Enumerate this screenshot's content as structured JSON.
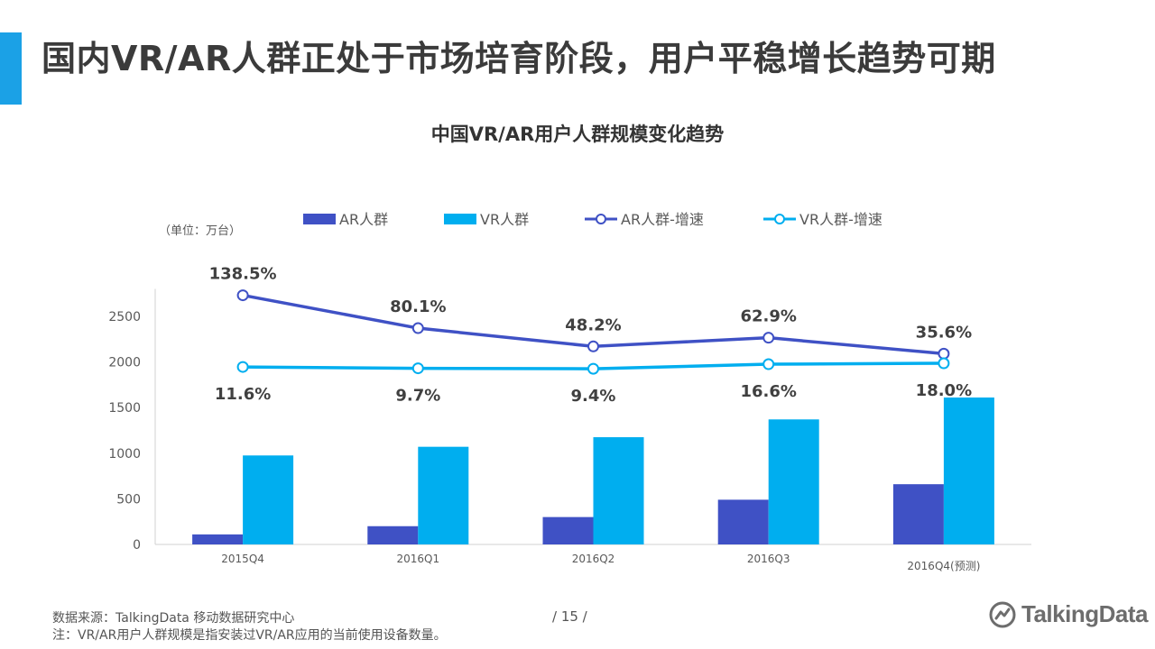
{
  "slide": {
    "title": "国内VR/AR人群正处于市场培育阶段，用户平稳增长趋势可期",
    "accent_color": "#1ba1e6"
  },
  "chart_data": {
    "type": "bar",
    "title": "中国VR/AR用户人群规模变化趋势",
    "unit_label": "（单位：万台）",
    "categories": [
      "2015Q4",
      "2016Q1",
      "2016Q2",
      "2016Q3",
      "2016Q4(预测)"
    ],
    "ylim": [
      0,
      2800
    ],
    "yticks": [
      0,
      500,
      1000,
      1500,
      2000,
      2500
    ],
    "grid": false,
    "legend_position": "top",
    "series": [
      {
        "name": "AR人群",
        "type": "bar",
        "color": "#3f51c5",
        "values": [
          110,
          200,
          300,
          490,
          660
        ]
      },
      {
        "name": "VR人群",
        "type": "bar",
        "color": "#00aeef",
        "values": [
          975,
          1070,
          1175,
          1370,
          1610
        ]
      },
      {
        "name": "AR人群-增速",
        "type": "line",
        "color": "#3f51c5",
        "plot_values": [
          2730,
          2370,
          2170,
          2265,
          2090
        ],
        "labels": [
          "138.5%",
          "80.1%",
          "48.2%",
          "62.9%",
          "35.6%"
        ],
        "label_position": "above"
      },
      {
        "name": "VR人群-增速",
        "type": "line",
        "color": "#00aeef",
        "plot_values": [
          1945,
          1930,
          1925,
          1975,
          1985
        ],
        "labels": [
          "11.6%",
          "9.7%",
          "9.4%",
          "16.6%",
          "18.0%"
        ],
        "label_position": "below"
      }
    ]
  },
  "footer": {
    "source": "数据来源：TalkingData 移动数据研究中心",
    "note": "注：VR/AR用户人群规模是指安装过VR/AR应用的当前使用设备数量。",
    "page": "/  15  /",
    "brand": "TalkingData",
    "brand_icon": "talkingdata-logo-icon"
  }
}
